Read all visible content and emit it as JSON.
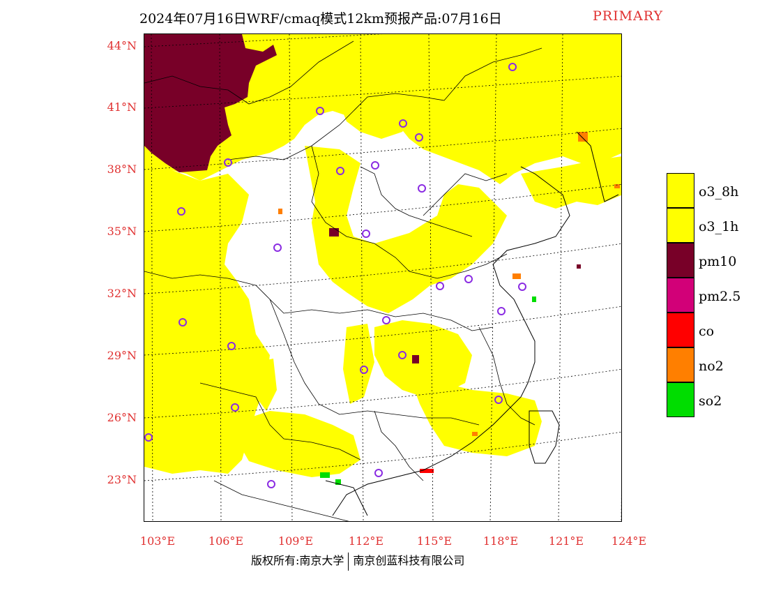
{
  "title": {
    "main": "2024年07月16日WRF/cmaq模式12km预报产品:07月16日",
    "tag": "PRIMARY"
  },
  "axes": {
    "lat_labels": [
      "44°N",
      "41°N",
      "38°N",
      "35°N",
      "32°N",
      "29°N",
      "26°N",
      "23°N"
    ],
    "lon_labels": [
      "103°E",
      "106°E",
      "109°E",
      "112°E",
      "115°E",
      "118°E",
      "121°E",
      "124°E"
    ]
  },
  "legend": [
    {
      "label": "o3_8h",
      "color": "#ffff00"
    },
    {
      "label": "o3_1h",
      "color": "#ffff00"
    },
    {
      "label": "pm10",
      "color": "#780028"
    },
    {
      "label": "pm2.5",
      "color": "#d20078"
    },
    {
      "label": "co",
      "color": "#ff0000"
    },
    {
      "label": "no2",
      "color": "#ff7f00"
    },
    {
      "label": "so2",
      "color": "#00dd00"
    }
  ],
  "footer": {
    "copyright": "版权所有:南京大学",
    "company": "南京创蓝科技有限公司"
  },
  "map": {
    "background": "#ffffff",
    "station_marker": "circle-icon",
    "station_color": "#8a2be2"
  }
}
